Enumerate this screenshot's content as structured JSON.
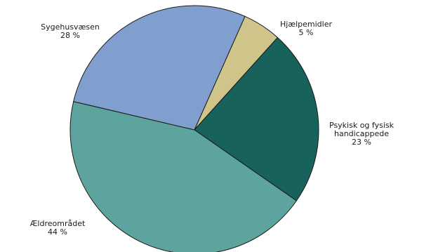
{
  "chart_data": {
    "type": "pie",
    "slices": [
      {
        "name": "Hjælpemidler",
        "label_lines": [
          "Hjælpemidler",
          "5 %"
        ],
        "value": 5,
        "color": "#cfc58a"
      },
      {
        "name": "Psykisk og fysisk handicappede",
        "label_lines": [
          "Psykisk og fysisk",
          "handicappede",
          "23 %"
        ],
        "value": 23,
        "color": "#17625a"
      },
      {
        "name": "Ældreområdet",
        "label_lines": [
          "Ældreområdet",
          "44 %"
        ],
        "value": 44,
        "color": "#5ea49e"
      },
      {
        "name": "Sygehusvæsen",
        "label_lines": [
          "Sygehusvæsen",
          "28 %"
        ],
        "value": 28,
        "color": "#809fcf"
      }
    ],
    "start_angle_deg": 24,
    "direction": "clockwise"
  }
}
